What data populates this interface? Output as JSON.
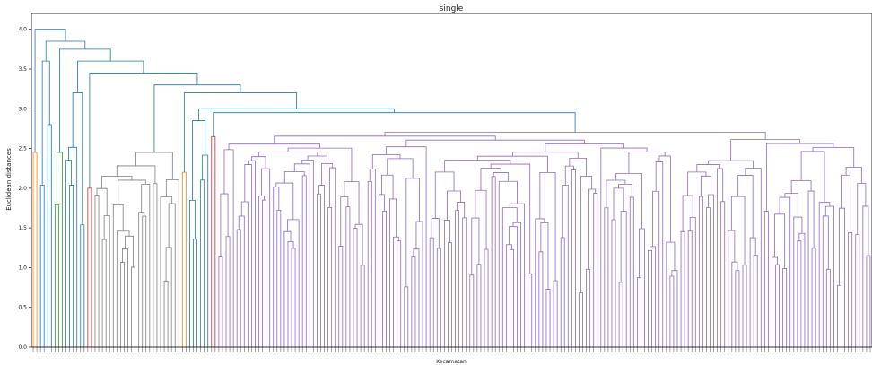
{
  "chart_data": {
    "type": "dendrogram",
    "title": "single",
    "xlabel": "Kecamatan",
    "ylabel": "Euclidean distances",
    "ylim": [
      0,
      4.2
    ],
    "yticks": [
      "0.0",
      "0.5",
      "1.0",
      "1.5",
      "2.0",
      "2.5",
      "3.0",
      "3.5",
      "4.0"
    ],
    "root_height": 4.0,
    "grid": false,
    "legend": "none",
    "clusters": [
      {
        "color": "#ff7f0e",
        "leaf_count": 2,
        "max_height": 2.45
      },
      {
        "color": "#1f77b4",
        "leaf_count": 4,
        "max_height": 3.6
      },
      {
        "color": "#2ca02c",
        "leaf_count": 3,
        "max_height": 2.45
      },
      {
        "color": "#1f77b4",
        "leaf_count": 6,
        "max_height": 3.2
      },
      {
        "color": "#d62728",
        "leaf_count": 2,
        "max_height": 2.0
      },
      {
        "color": "#7f7f7f",
        "leaf_count": 24,
        "max_height": 2.45
      },
      {
        "color": "#ff7f0e",
        "leaf_count": 2,
        "max_height": 2.2
      },
      {
        "color": "#1f77b4",
        "leaf_count": 6,
        "max_height": 2.85
      },
      {
        "color": "#d62728",
        "leaf_count": 2,
        "max_height": 2.65
      },
      {
        "color": "#9467bd",
        "leaf_count": 180,
        "max_height": 2.65
      }
    ],
    "colors": {
      "link_above_threshold": "#1f77b4",
      "purple": "#9467bd",
      "gray": "#7f7f7f",
      "orange": "#ff7f0e",
      "green": "#2ca02c",
      "red": "#d62728"
    }
  }
}
